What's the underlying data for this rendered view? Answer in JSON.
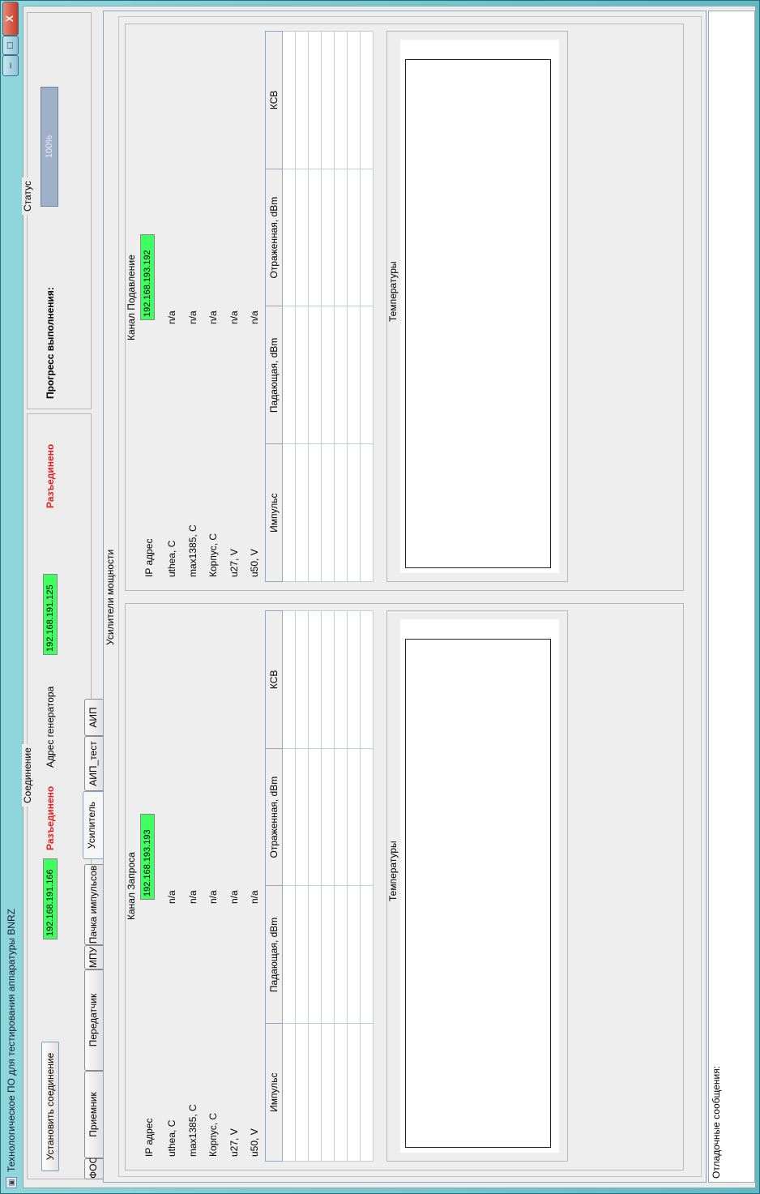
{
  "window": {
    "title": "Технологическое ПО для тестирования аппаратуры BNRZ",
    "minimize": "–",
    "maximize": "□",
    "close": "X"
  },
  "connection": {
    "group_title": "Соединение",
    "connect_button": "Установить соединение",
    "ip1": "192.168.191.166",
    "state1": "Разъединено",
    "generator_label": "Адрес генератора",
    "generator_ip": "192.168.191.125",
    "state2": "Разъединено"
  },
  "status": {
    "group_title": "Статус",
    "progress_label": "Прогресс выполнения:",
    "progress_value": 100,
    "progress_text": "100%"
  },
  "tabs": [
    "ФОС",
    "Приемник",
    "Передатчик",
    "МПУ",
    "Пачка импульсов",
    "Усилитель",
    "АИП_тест",
    "АИП"
  ],
  "active_tab": "Усилитель",
  "amplifiers": {
    "group_title": "Усилители мощности",
    "row_labels": [
      "IP адрес",
      "uthea, C",
      "max1385, C",
      "Корпус, C",
      "u27, V",
      "u50, V"
    ],
    "table_headers": [
      "Импульс",
      "Падающая, dBm",
      "Отраженная, dBm",
      "КСВ"
    ],
    "temp_title": "Температуры",
    "channels": [
      {
        "title": "Канал Запроса",
        "ip": "192.168.193.193",
        "values": [
          "n/a",
          "n/a",
          "n/a",
          "n/a",
          "n/a"
        ]
      },
      {
        "title": "Канал Подавление",
        "ip": "192.168.193.192",
        "values": [
          "n/a",
          "n/a",
          "n/a",
          "n/a",
          "n/a"
        ]
      }
    ]
  },
  "messages": {
    "label": "Отладочные сообщения:"
  },
  "colors": {
    "connected_ip_bg": "#40ff60",
    "disconnected_text": "#e02020",
    "progress_fill": "#9fb0c6"
  }
}
